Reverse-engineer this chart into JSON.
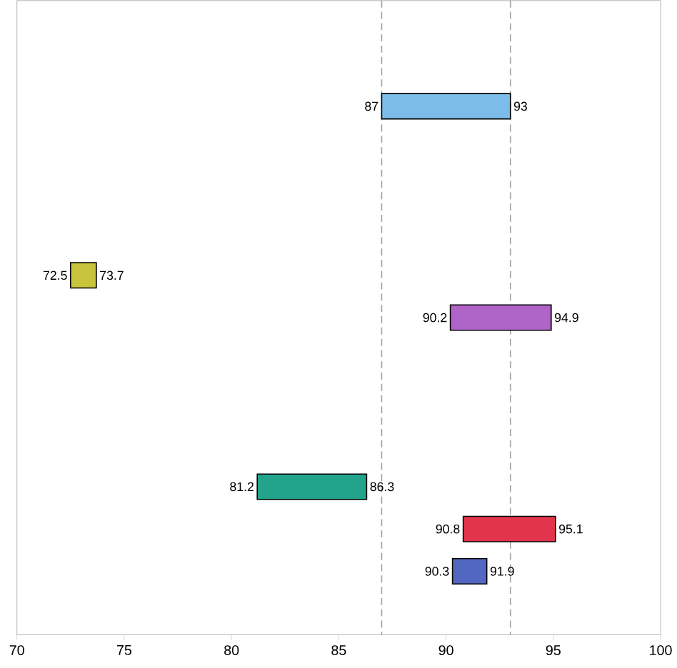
{
  "chart_data": {
    "type": "bar",
    "orientation": "horizontal",
    "categories": [
      null,
      null,
      null,
      null,
      null,
      null,
      null,
      null,
      null,
      null,
      null,
      null,
      null,
      null,
      null
    ],
    "base": [
      null,
      null,
      87,
      null,
      null,
      null,
      72.5,
      90.2,
      null,
      null,
      null,
      81.2,
      90.8,
      90.3,
      null
    ],
    "values": [
      null,
      null,
      6,
      null,
      null,
      null,
      1.2,
      4.7,
      null,
      null,
      null,
      5.1,
      4.3,
      1.6,
      null
    ],
    "colors": [
      null,
      null,
      "#7cbce8",
      null,
      null,
      null,
      "#c8c43c",
      "#b064c8",
      null,
      null,
      null,
      "#22a48c",
      "#e2344a",
      "#5268c0",
      null
    ],
    "annotations": [
      "87",
      "93",
      "72.5",
      "73.7",
      "90.2",
      "94.9",
      "81.2",
      "86.3",
      "90.8",
      "95.1",
      "90.3",
      "91.9"
    ],
    "xlim": [
      70,
      100
    ],
    "xticks": [
      70,
      75,
      80,
      85,
      90,
      95,
      100
    ],
    "ref_lines": [
      {
        "axis": "x",
        "value": 87,
        "color": "#a0a0a0",
        "line_style": "dashed"
      },
      {
        "axis": "x",
        "value": 93,
        "color": "#a0a0a0",
        "line_style": "dashed"
      }
    ],
    "grid": false
  }
}
